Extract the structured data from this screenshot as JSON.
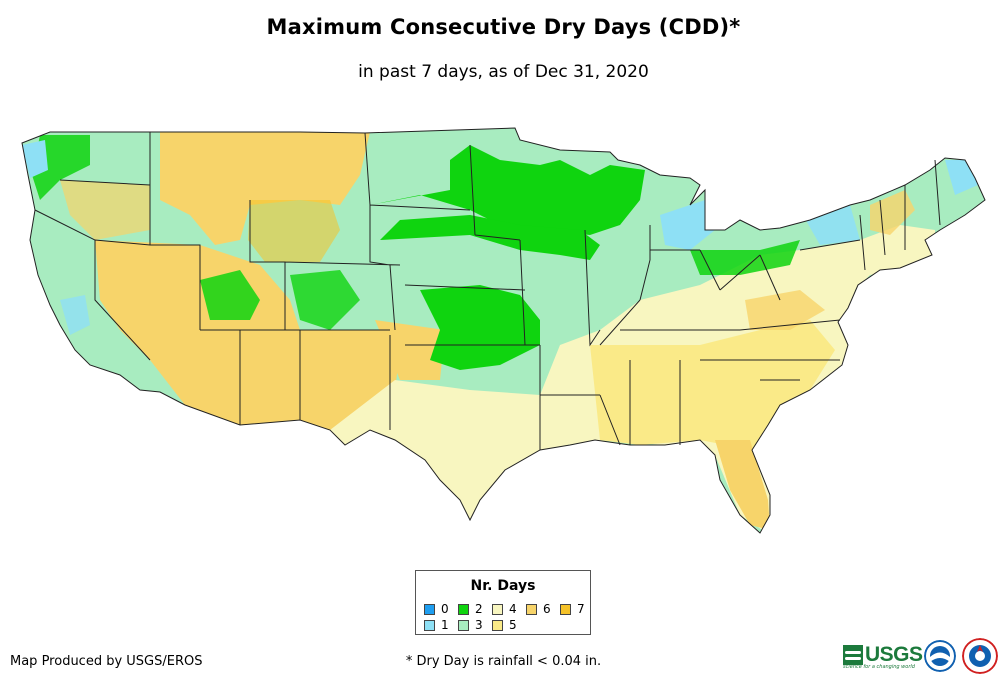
{
  "title": "Maximum Consecutive Dry Days (CDD)*",
  "subtitle": "in past 7 days, as of Dec 31, 2020",
  "legend": {
    "title": "Nr. Days",
    "items": [
      {
        "label": "0",
        "color": "#1e9ef0"
      },
      {
        "label": "1",
        "color": "#8ee0f5"
      },
      {
        "label": "2",
        "color": "#0fd40f"
      },
      {
        "label": "3",
        "color": "#a8ecc0"
      },
      {
        "label": "4",
        "color": "#f8f6c0"
      },
      {
        "label": "5",
        "color": "#faea88"
      },
      {
        "label": "6",
        "color": "#f7d46a"
      },
      {
        "label": "7",
        "color": "#f5c228"
      }
    ]
  },
  "credit": "Map Produced by USGS/EROS",
  "footnote": "* Dry Day is rainfall < 0.04 in.",
  "logos": {
    "usgs_text": "USGS",
    "usgs_tagline": "science for a changing world",
    "noaa_color": "#1060b0",
    "nws_color": "#d02020"
  }
}
